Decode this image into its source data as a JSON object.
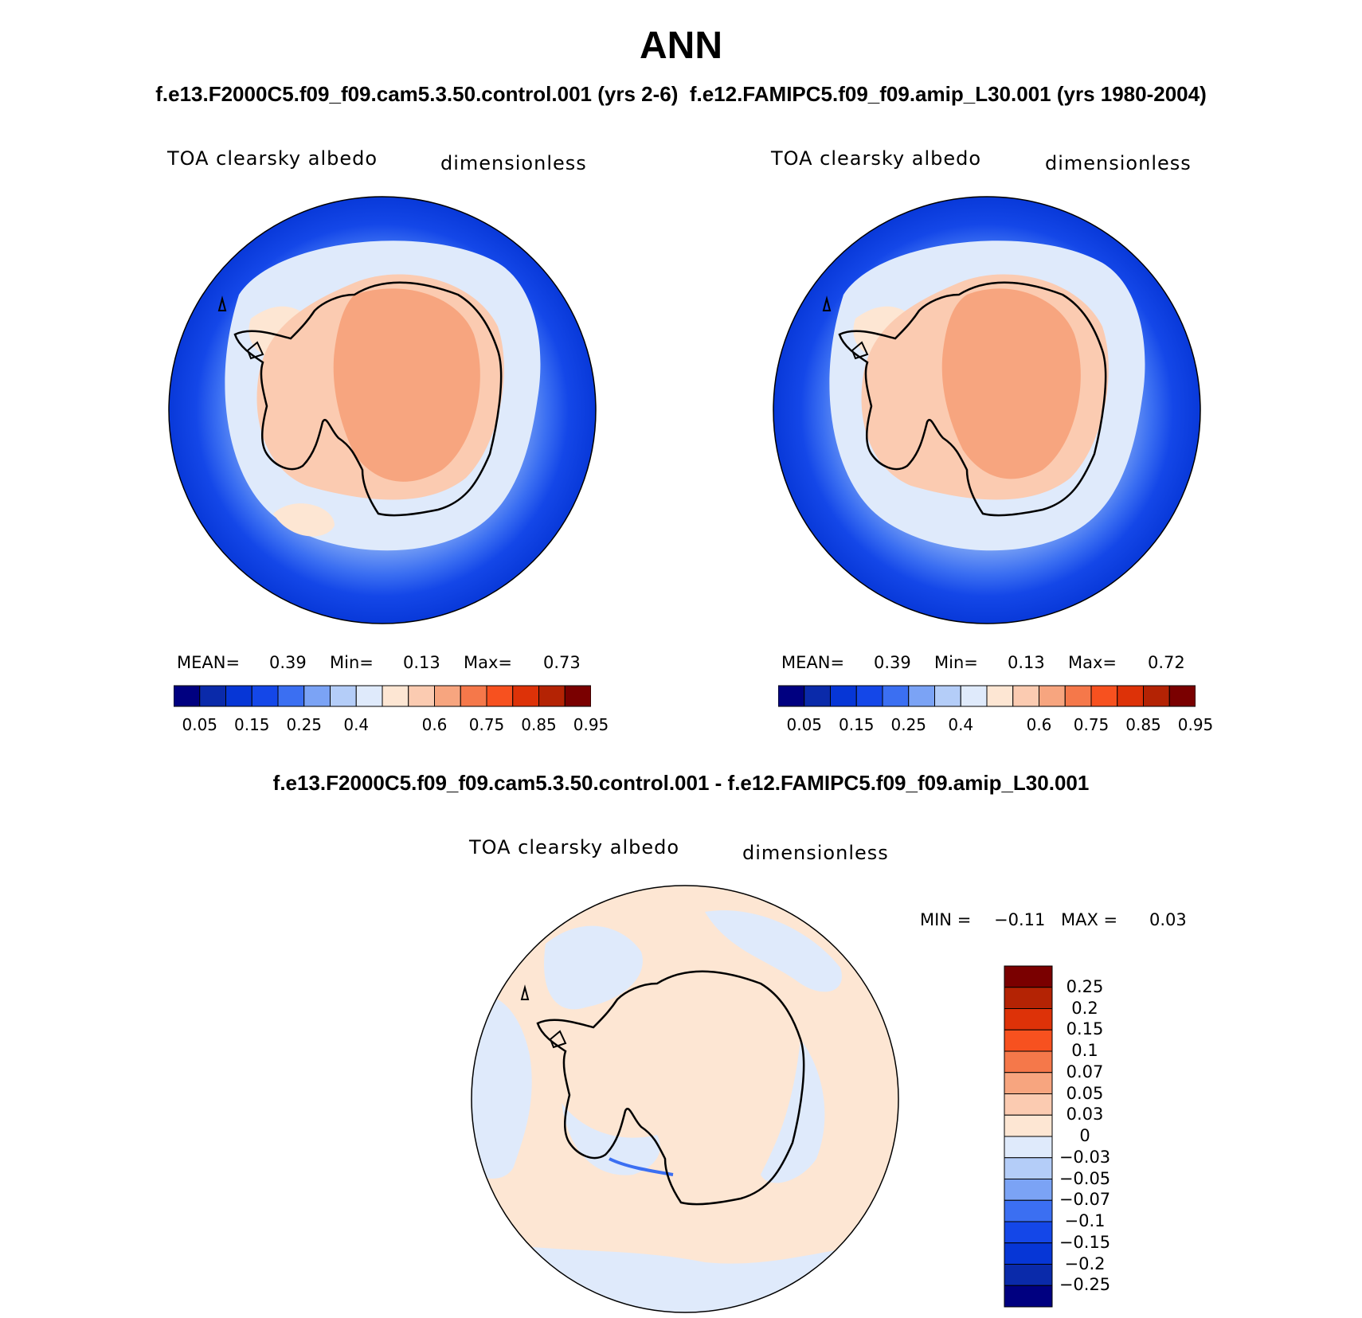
{
  "header": {
    "title": "ANN",
    "subtitle": "f.e13.F2000C5.f09_f09.cam5.3.50.control.001 (yrs 2-6)  f.e12.FAMIPC5.f09_f09.amip_L30.001 (yrs 1980-2004)",
    "diff_title": "f.e13.F2000C5.f09_f09.cam5.3.50.control.001 - f.e12.FAMIPC5.f09_f09.amip_L30.001"
  },
  "panels": [
    {
      "variable": "TOA clearsky albedo",
      "units": "dimensionless",
      "stats": {
        "mean_label": "MEAN=",
        "mean": "0.39",
        "min_label": "Min=",
        "min": "0.13",
        "max_label": "Max=",
        "max": "0.73"
      }
    },
    {
      "variable": "TOA clearsky albedo",
      "units": "dimensionless",
      "stats": {
        "mean_label": "MEAN=",
        "mean": "0.39",
        "min_label": "Min=",
        "min": "0.13",
        "max_label": "Max=",
        "max": "0.72"
      }
    },
    {
      "variable": "TOA clearsky albedo",
      "units": "dimensionless",
      "stats": {
        "min_label": "MIN =",
        "min": "−0.11",
        "max_label": "MAX =",
        "max": "0.03"
      }
    }
  ],
  "colorbar_abs": {
    "colors": [
      "#000080",
      "#0a2aaa",
      "#0636d6",
      "#1447e8",
      "#3b6ff2",
      "#7ba3f5",
      "#b4cdf8",
      "#dfeafb",
      "#fde6d3",
      "#fbcbb1",
      "#f7a57f",
      "#f5784a",
      "#f7511f",
      "#dd3208",
      "#b42304",
      "#7a0000"
    ],
    "labels": [
      "0.05",
      "0.15",
      "0.25",
      "0.4",
      "0.6",
      "0.75",
      "0.85",
      "0.95"
    ]
  },
  "colorbar_diff": {
    "colors": [
      "#7a0000",
      "#b42304",
      "#dd3208",
      "#f7511f",
      "#f5784a",
      "#f7a57f",
      "#fbcbb1",
      "#fde6d3",
      "#dfeafb",
      "#b4cdf8",
      "#7ba3f5",
      "#3b6ff2",
      "#1447e8",
      "#0636d6",
      "#0a2aaa",
      "#000080"
    ],
    "labels": [
      "0.25",
      "0.2",
      "0.15",
      "0.1",
      "0.07",
      "0.05",
      "0.03",
      "0",
      "−0.03",
      "−0.05",
      "−0.07",
      "−0.1",
      "−0.15",
      "−0.2",
      "−0.25"
    ]
  }
}
